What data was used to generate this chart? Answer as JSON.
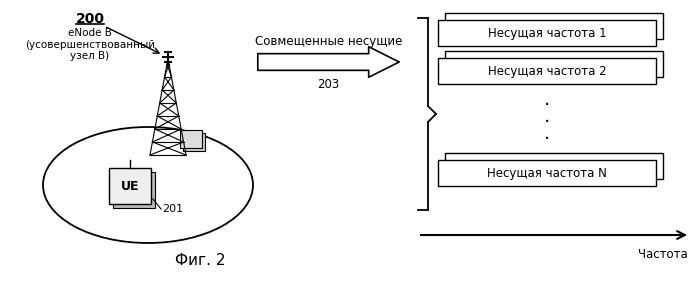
{
  "bg_color": "#ffffff",
  "fig_label": "Фиг. 2",
  "label_200": "200",
  "label_enode": "eNode B\n(усовершенствованный\nузел B)",
  "label_203": "203",
  "label_arrow": "Совмещенные несущие",
  "label_freq1": "Несущая частота 1",
  "label_freq2": "Несущая частота 2",
  "label_freqN": "Несущая частота N",
  "label_201": "201",
  "label_UE": "UE",
  "label_chastota": "Частота",
  "text_color": "#000000",
  "line_color": "#000000"
}
